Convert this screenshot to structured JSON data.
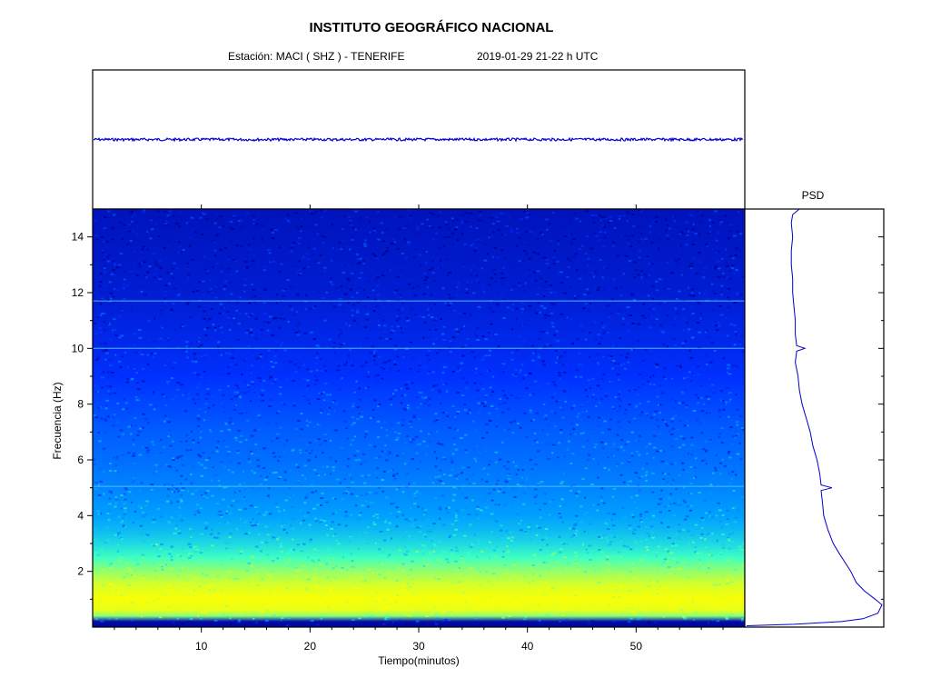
{
  "header": {
    "title": "INSTITUTO GEOGRÁFICO NACIONAL",
    "station": "Estación:  MACI ( SHZ ) - TENERIFE",
    "datetime": "2019-01-29  21-22 h UTC"
  },
  "chart_data": [
    {
      "type": "line",
      "panel": "seismogram",
      "title": "",
      "xlabel": "",
      "ylabel": "",
      "xlim": [
        0,
        60
      ],
      "series": [
        {
          "x": [
            0,
            10,
            20,
            30,
            40,
            50,
            60
          ],
          "y": [
            0,
            0,
            0,
            0,
            0,
            0,
            0
          ]
        }
      ],
      "color": "#0000cc"
    },
    {
      "type": "heatmap",
      "panel": "spectrogram",
      "xlabel": "Tiempo(minutos)",
      "ylabel": "Frecuencia  (Hz)",
      "xlim": [
        0,
        60
      ],
      "ylim": [
        0,
        15
      ],
      "x_ticks": [
        10,
        20,
        30,
        40,
        50
      ],
      "y_ticks": [
        2,
        4,
        6,
        8,
        10,
        12,
        14
      ],
      "colormap": [
        "#00008f",
        "#0030ff",
        "#00a0ff",
        "#30ffd0",
        "#c0ff40",
        "#ffff00"
      ],
      "intensity_profile": {
        "freq_hz": [
          0,
          0.2,
          0.4,
          0.6,
          1.0,
          1.5,
          2.0,
          2.5,
          3.0,
          3.5,
          4.0,
          5.0,
          6.0,
          7.0,
          8.0,
          9.0,
          10.0,
          12.0,
          15.0
        ],
        "intensity": [
          0.02,
          0.05,
          0.72,
          0.92,
          0.98,
          0.88,
          0.74,
          0.62,
          0.52,
          0.45,
          0.4,
          0.35,
          0.31,
          0.28,
          0.24,
          0.2,
          0.17,
          0.12,
          0.08
        ]
      },
      "horizontal_lines_hz": [
        5.05,
        10.0,
        11.7
      ]
    },
    {
      "type": "line",
      "panel": "psd",
      "title": "PSD",
      "ylim": [
        0,
        15
      ],
      "series": [
        {
          "y": [
            0.05,
            0.1,
            0.2,
            0.3,
            0.5,
            0.8,
            1.0,
            1.3,
            1.6,
            2.0,
            2.3,
            2.6,
            3.0,
            3.5,
            4.0,
            4.5,
            4.9,
            5.0,
            5.1,
            5.5,
            6.0,
            6.5,
            7.0,
            7.5,
            8.0,
            8.5,
            9.0,
            9.5,
            9.9,
            10.0,
            10.1,
            10.5,
            11.0,
            11.5,
            12.0,
            12.5,
            13.0,
            13.5,
            14.0,
            14.5,
            14.8,
            15.0
          ],
          "x": [
            0.0,
            0.35,
            0.7,
            0.86,
            0.97,
            1.0,
            0.95,
            0.87,
            0.81,
            0.77,
            0.73,
            0.69,
            0.64,
            0.6,
            0.57,
            0.56,
            0.55,
            0.63,
            0.55,
            0.54,
            0.52,
            0.49,
            0.47,
            0.44,
            0.41,
            0.39,
            0.38,
            0.36,
            0.37,
            0.43,
            0.37,
            0.36,
            0.36,
            0.35,
            0.34,
            0.34,
            0.33,
            0.33,
            0.34,
            0.33,
            0.34,
            0.39
          ]
        }
      ],
      "color": "#0000cc"
    }
  ]
}
